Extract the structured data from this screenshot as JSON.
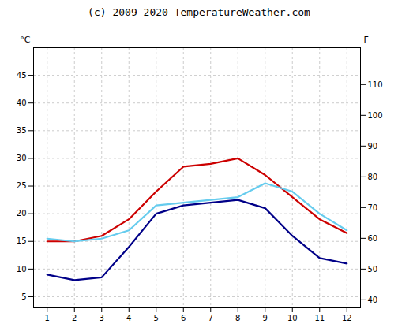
{
  "chart_data": {
    "type": "line",
    "title": "(c) 2009-2020 TemperatureWeather.com",
    "x": [
      1,
      2,
      3,
      4,
      5,
      6,
      7,
      8,
      9,
      10,
      11,
      12
    ],
    "series": [
      {
        "color": "#cc0000",
        "values": [
          15.0,
          15.0,
          16.0,
          19.0,
          24.0,
          28.5,
          29.0,
          30.0,
          27.0,
          23.0,
          19.0,
          16.5
        ]
      },
      {
        "color": "#66ccee",
        "values": [
          15.5,
          15.0,
          15.5,
          17.0,
          21.5,
          22.0,
          22.5,
          23.0,
          25.5,
          24.0,
          20.0,
          17.0
        ]
      },
      {
        "color": "#000088",
        "values": [
          9.0,
          8.0,
          8.5,
          14.0,
          20.0,
          21.5,
          22.0,
          22.5,
          21.0,
          16.0,
          12.0,
          11.0
        ]
      }
    ],
    "xlim": [
      0.5,
      12.5
    ],
    "xticks": [
      1,
      2,
      3,
      4,
      5,
      6,
      7,
      8,
      9,
      10,
      11,
      12
    ],
    "ylim": [
      3,
      50
    ],
    "yticks": [
      5,
      10,
      15,
      20,
      25,
      30,
      35,
      40,
      45
    ],
    "ylabel": "°C",
    "y2lim": [
      37.4,
      122
    ],
    "y2ticks": [
      40,
      50,
      60,
      70,
      80,
      90,
      100,
      110
    ],
    "y2label": "F",
    "grid": true
  }
}
